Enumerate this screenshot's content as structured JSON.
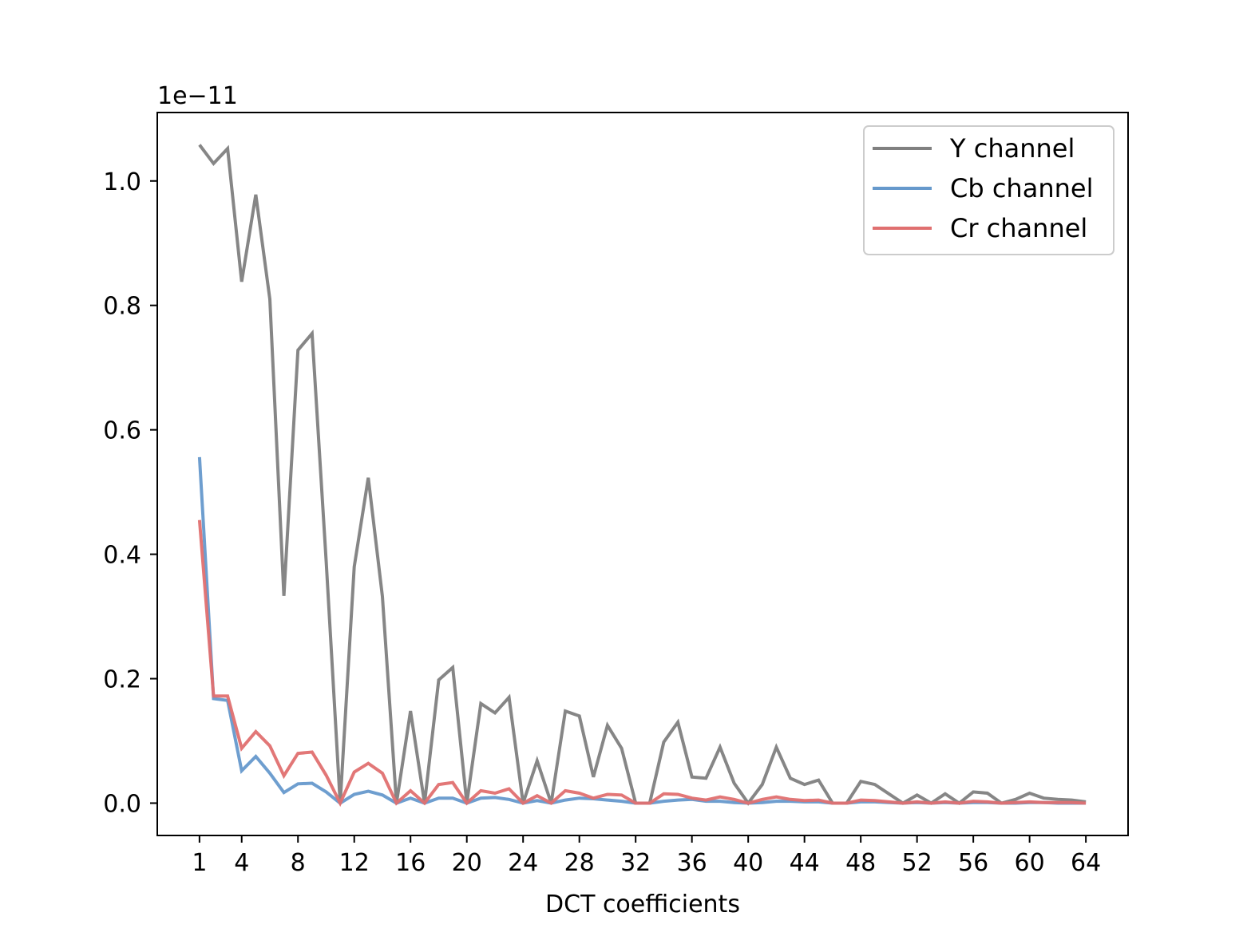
{
  "chart_data": {
    "type": "line",
    "title": "",
    "xlabel": "DCT coefficients",
    "ylabel": "",
    "y_offset_label": "1e−11",
    "xlim": [
      -2,
      67
    ],
    "ylim": [
      -0.052,
      1.11
    ],
    "x_ticks": [
      1,
      4,
      8,
      12,
      16,
      20,
      24,
      28,
      32,
      36,
      40,
      44,
      48,
      52,
      56,
      60,
      64
    ],
    "y_ticks": [
      {
        "value": 0.0,
        "label": "0.0"
      },
      {
        "value": 0.2,
        "label": "0.2"
      },
      {
        "value": 0.4,
        "label": "0.4"
      },
      {
        "value": 0.6,
        "label": "0.6"
      },
      {
        "value": 0.8,
        "label": "0.8"
      },
      {
        "value": 1.0,
        "label": "1.0"
      }
    ],
    "grid": false,
    "legend_position": "top-right",
    "x": [
      1,
      2,
      3,
      4,
      5,
      6,
      7,
      8,
      9,
      10,
      11,
      12,
      13,
      14,
      15,
      16,
      17,
      18,
      19,
      20,
      21,
      22,
      23,
      24,
      25,
      26,
      27,
      28,
      29,
      30,
      31,
      32,
      33,
      34,
      35,
      36,
      37,
      38,
      39,
      40,
      41,
      42,
      43,
      44,
      45,
      46,
      47,
      48,
      49,
      50,
      51,
      52,
      53,
      54,
      55,
      56,
      57,
      58,
      59,
      60,
      61,
      62,
      63,
      64
    ],
    "series": [
      {
        "name": "Y channel",
        "color": "#808080",
        "values": [
          1.058,
          1.028,
          1.052,
          0.838,
          0.978,
          0.81,
          0.333,
          0.728,
          0.755,
          0.39,
          0.0,
          0.38,
          0.523,
          0.332,
          0.0,
          0.148,
          0.0,
          0.198,
          0.218,
          0.0,
          0.16,
          0.145,
          0.17,
          0.0,
          0.068,
          0.0,
          0.148,
          0.14,
          0.042,
          0.125,
          0.088,
          0.0,
          0.0,
          0.098,
          0.13,
          0.042,
          0.04,
          0.09,
          0.032,
          0.0,
          0.03,
          0.09,
          0.04,
          0.03,
          0.037,
          0.0,
          0.0,
          0.035,
          0.03,
          0.015,
          0.0,
          0.013,
          0.0,
          0.015,
          0.0,
          0.018,
          0.016,
          0.0,
          0.006,
          0.016,
          0.008,
          0.006,
          0.005,
          0.002
        ]
      },
      {
        "name": "Cb channel",
        "color": "#6699cc",
        "values": [
          0.556,
          0.168,
          0.165,
          0.052,
          0.075,
          0.048,
          0.017,
          0.031,
          0.032,
          0.018,
          0.0,
          0.014,
          0.019,
          0.013,
          0.0,
          0.008,
          0.0,
          0.008,
          0.008,
          0.0,
          0.008,
          0.009,
          0.006,
          0.0,
          0.004,
          0.0,
          0.005,
          0.008,
          0.007,
          0.005,
          0.003,
          0.0,
          0.0,
          0.003,
          0.005,
          0.006,
          0.003,
          0.003,
          0.001,
          0.0,
          0.001,
          0.003,
          0.003,
          0.002,
          0.002,
          0.0,
          0.0,
          0.002,
          0.002,
          0.001,
          0.0,
          0.001,
          0.0,
          0.001,
          0.0,
          0.001,
          0.001,
          0.0,
          0.0,
          0.001,
          0.001,
          0.0,
          0.0,
          0.0
        ]
      },
      {
        "name": "Cr channel",
        "color": "#e07070",
        "values": [
          0.455,
          0.172,
          0.172,
          0.088,
          0.115,
          0.092,
          0.044,
          0.08,
          0.082,
          0.045,
          0.0,
          0.05,
          0.064,
          0.048,
          0.0,
          0.02,
          0.0,
          0.03,
          0.033,
          0.0,
          0.02,
          0.016,
          0.023,
          0.0,
          0.012,
          0.0,
          0.02,
          0.016,
          0.008,
          0.014,
          0.013,
          0.0,
          0.0,
          0.015,
          0.014,
          0.008,
          0.005,
          0.01,
          0.006,
          0.0,
          0.006,
          0.01,
          0.006,
          0.004,
          0.005,
          0.0,
          0.0,
          0.005,
          0.004,
          0.002,
          0.0,
          0.002,
          0.0,
          0.002,
          0.0,
          0.003,
          0.002,
          0.0,
          0.001,
          0.002,
          0.001,
          0.001,
          0.001,
          0.0
        ]
      }
    ]
  }
}
